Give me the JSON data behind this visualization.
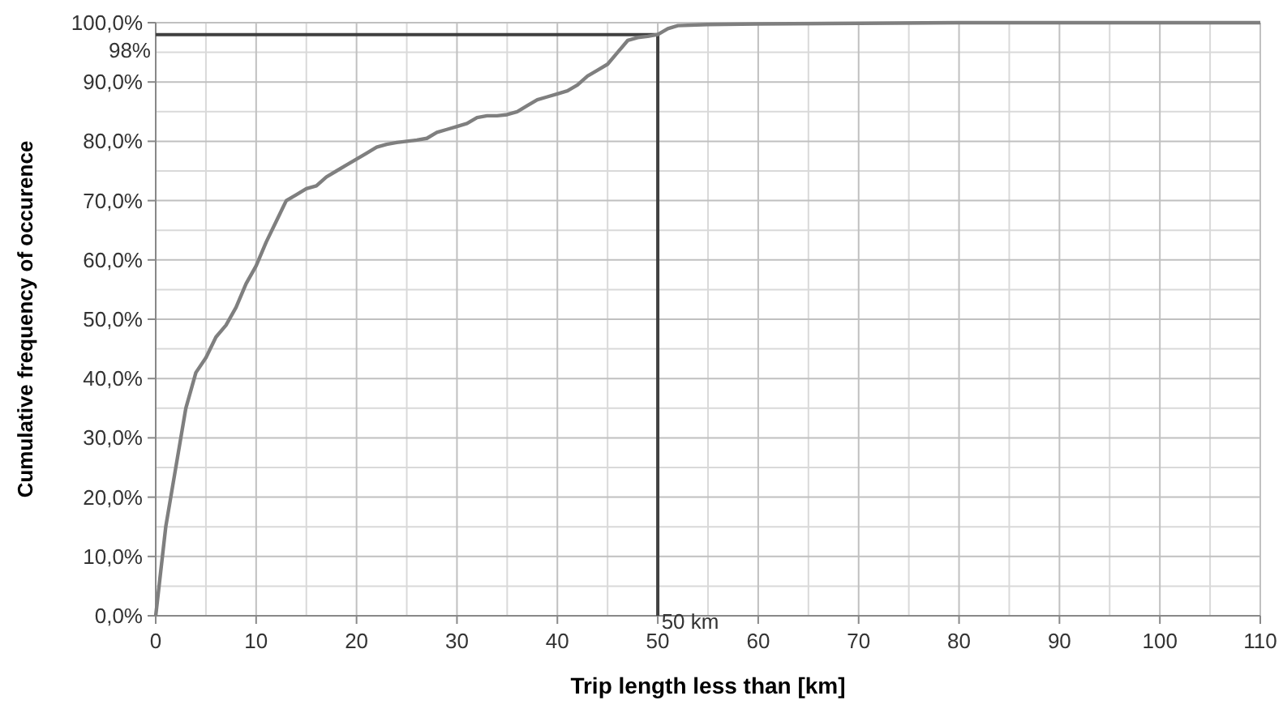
{
  "chart_data": {
    "type": "line",
    "xlabel": "Trip length less than [km]",
    "ylabel": "Cumulative frequency of occurence",
    "x": [
      0,
      1,
      2,
      3,
      4,
      5,
      6,
      7,
      8,
      9,
      10,
      11,
      12,
      13,
      14,
      15,
      16,
      17,
      18,
      19,
      20,
      21,
      22,
      23,
      24,
      25,
      26,
      27,
      28,
      29,
      30,
      31,
      32,
      33,
      34,
      35,
      36,
      37,
      38,
      39,
      40,
      41,
      42,
      43,
      44,
      45,
      46,
      47,
      48,
      49,
      50,
      51,
      52,
      55,
      60,
      70,
      80,
      100,
      110
    ],
    "series": [
      {
        "color": "#7f7f7f",
        "values": [
          0,
          15,
          25,
          35,
          41,
          43.5,
          47,
          49,
          52,
          56,
          59,
          63,
          66.5,
          70,
          71,
          72,
          72.5,
          74,
          75,
          76,
          77,
          78,
          79,
          79.5,
          79.8,
          80,
          80.2,
          80.5,
          81.5,
          82,
          82.5,
          83,
          84,
          84.3,
          84.3,
          84.5,
          85,
          86,
          87,
          87.5,
          88,
          88.5,
          89.5,
          91,
          92,
          93,
          95,
          97,
          97.5,
          97.7,
          98,
          99,
          99.5,
          99.7,
          99.8,
          99.9,
          100,
          100,
          100
        ]
      }
    ],
    "xlim": [
      0,
      110
    ],
    "xticks": [
      0,
      10,
      20,
      30,
      40,
      50,
      60,
      70,
      80,
      90,
      100,
      110
    ],
    "ylim": [
      0,
      100
    ],
    "yticks": [
      {
        "value": 0,
        "label": "0,0%"
      },
      {
        "value": 10,
        "label": "10,0%"
      },
      {
        "value": 20,
        "label": "20,0%"
      },
      {
        "value": 30,
        "label": "30,0%"
      },
      {
        "value": 40,
        "label": "40,0%"
      },
      {
        "value": 50,
        "label": "50,0%"
      },
      {
        "value": 60,
        "label": "60,0%"
      },
      {
        "value": 70,
        "label": "70,0%"
      },
      {
        "value": 80,
        "label": "80,0%"
      },
      {
        "value": 90,
        "label": "90,0%"
      },
      {
        "value": 100,
        "label": "100,0%"
      }
    ],
    "ref_lines": [
      {
        "axis": "y",
        "value": 98,
        "label": "98%",
        "color": "#404040"
      },
      {
        "axis": "x",
        "value": 50,
        "label": "50 km",
        "color": "#404040"
      }
    ],
    "grid": true,
    "marker": "none",
    "line_style": "solid"
  }
}
